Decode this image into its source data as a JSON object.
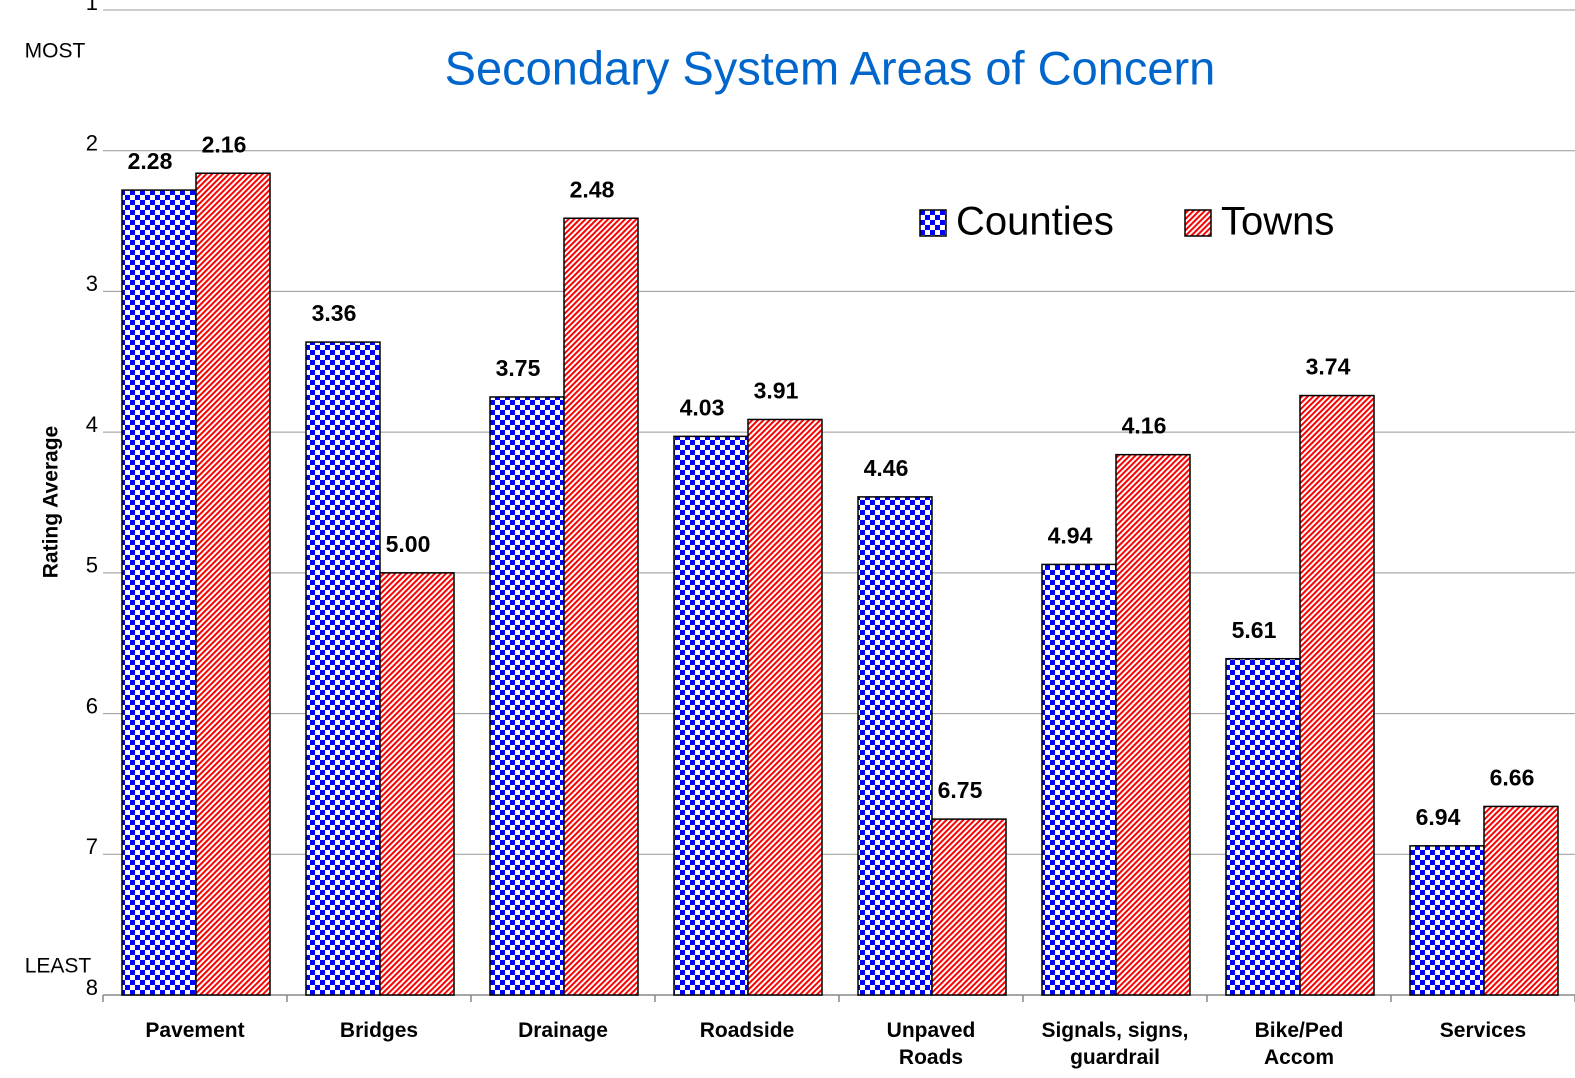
{
  "chart_data": {
    "type": "bar",
    "title": "Secondary System Areas of Concern",
    "y_label": "Rating Average",
    "top_annotation": "MOST",
    "bottom_annotation": "LEAST",
    "categories": [
      "Pavement",
      "Bridges",
      "Drainage",
      "Roadside",
      "Unpaved\nRoads",
      "Signals, signs,\nguardrail",
      "Bike/Ped\nAccom",
      "Services"
    ],
    "series": [
      {
        "name": "Counties",
        "color": "#0000ff",
        "pattern": "checker",
        "values": [
          2.28,
          3.36,
          3.75,
          4.03,
          4.46,
          4.94,
          5.61,
          6.94
        ],
        "value_labels": [
          "2.28",
          "3.36",
          "3.75",
          "4.03",
          "4.46",
          "4.94",
          "5.61",
          "6.94"
        ]
      },
      {
        "name": "Towns",
        "color": "#ff0000",
        "pattern": "hatch",
        "values": [
          2.16,
          5.0,
          2.48,
          3.91,
          6.75,
          4.16,
          3.74,
          6.66
        ],
        "value_labels": [
          "2.16",
          "5.00",
          "2.48",
          "3.91",
          "6.75",
          "4.16",
          "3.74",
          "6.66"
        ]
      }
    ],
    "ylim": [
      8,
      1
    ],
    "yticks": [
      1,
      2,
      3,
      4,
      5,
      6,
      7,
      8
    ],
    "grid": true,
    "legend": "top-right"
  }
}
